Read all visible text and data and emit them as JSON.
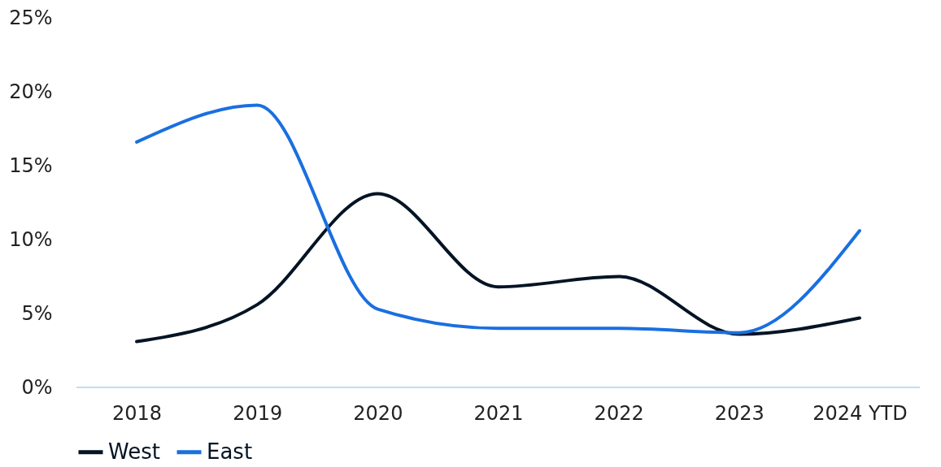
{
  "chart_data": {
    "type": "line",
    "categories": [
      "2018",
      "2019",
      "2020",
      "2021",
      "2022",
      "2023",
      "2024 YTD"
    ],
    "series": [
      {
        "name": "West",
        "color": "#041424",
        "values": [
          3.1,
          5.6,
          13.1,
          6.8,
          7.5,
          3.6,
          4.7
        ]
      },
      {
        "name": "East",
        "color": "#1a6fe0",
        "values": [
          16.6,
          19.1,
          5.3,
          4.0,
          4.0,
          3.7,
          10.6
        ]
      }
    ],
    "ylim": [
      0,
      25
    ],
    "yticks": [
      {
        "value": 0,
        "label": "0%"
      },
      {
        "value": 5,
        "label": "5%"
      },
      {
        "value": 10,
        "label": "10%"
      },
      {
        "value": 15,
        "label": "15%"
      },
      {
        "value": 20,
        "label": "20%"
      },
      {
        "value": 25,
        "label": "25%"
      }
    ],
    "grid": false,
    "legend": "bottom",
    "marker": "none",
    "line_style": "solid"
  }
}
